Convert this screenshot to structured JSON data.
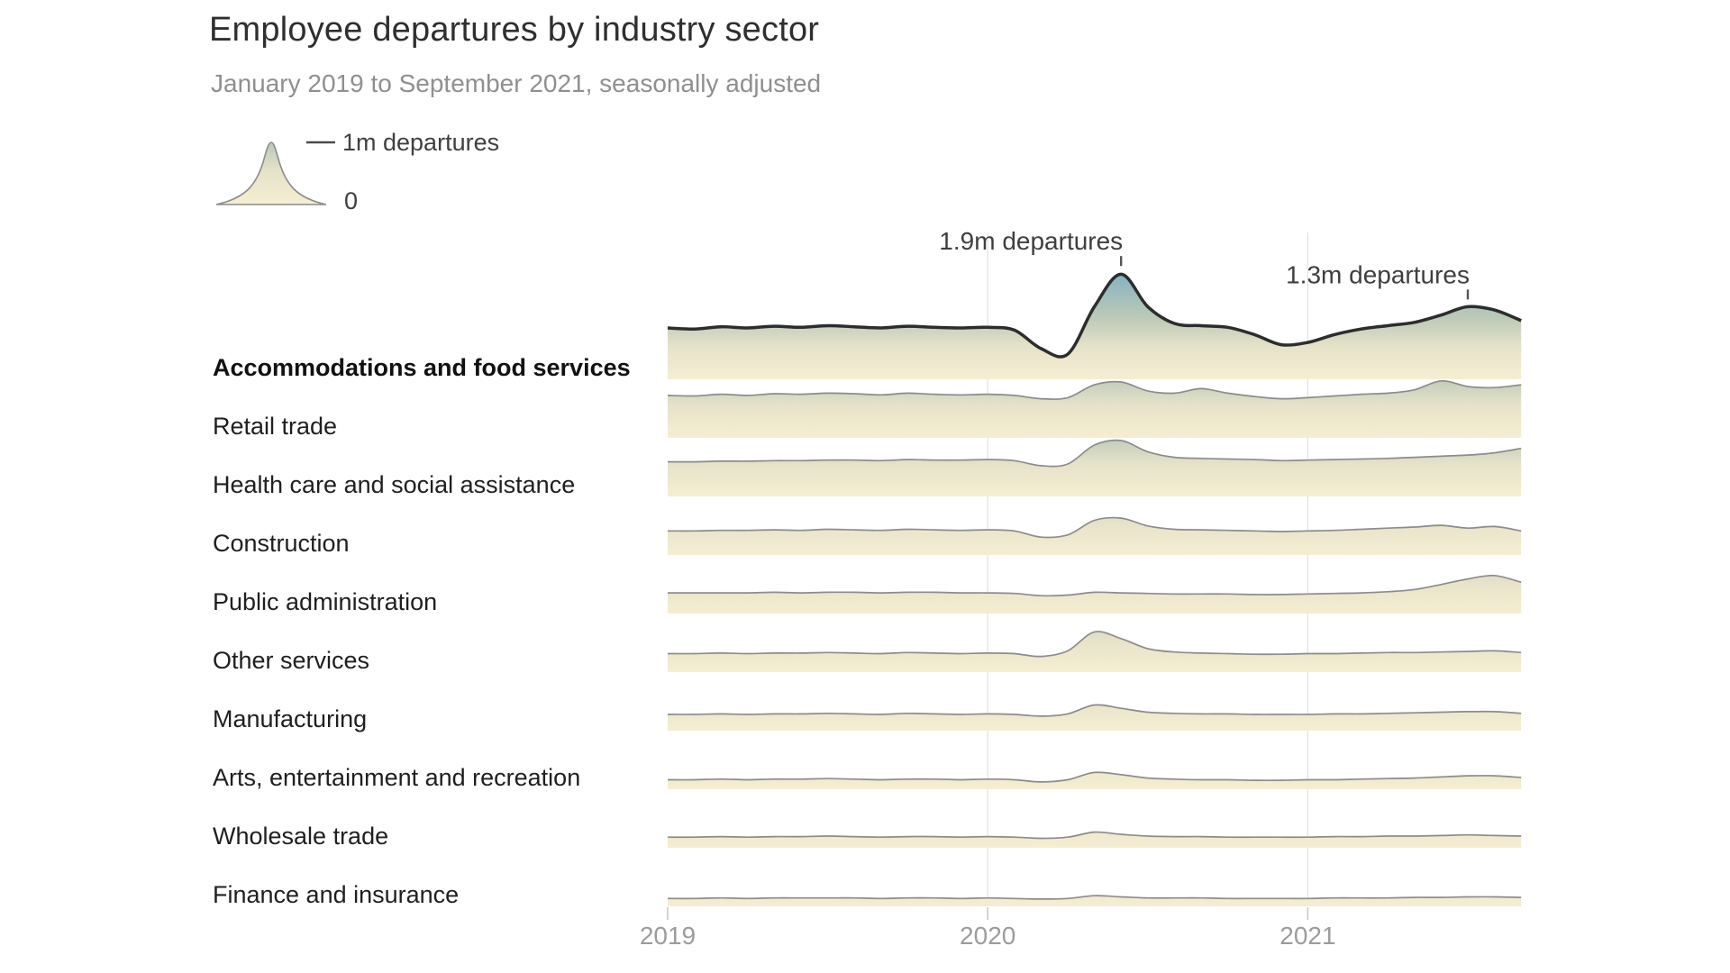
{
  "header": {
    "title": "Employee departures by industry sector",
    "subtitle": "January 2019 to September 2021, seasonally adjusted"
  },
  "legend": {
    "max_label": "1m departures",
    "zero_label": "0"
  },
  "chart_data": {
    "type": "area",
    "variant": "ridgeline",
    "title": "Employee departures by industry sector",
    "subtitle": "January 2019 to September 2021, seasonally adjusted",
    "unit": "millions of departures per month",
    "legend": {
      "max_value": 1.0,
      "max_label": "1m departures",
      "zero_label": "0"
    },
    "x": [
      "2019-01",
      "2019-02",
      "2019-03",
      "2019-04",
      "2019-05",
      "2019-06",
      "2019-07",
      "2019-08",
      "2019-09",
      "2019-10",
      "2019-11",
      "2019-12",
      "2020-01",
      "2020-02",
      "2020-03",
      "2020-04",
      "2020-05",
      "2020-06",
      "2020-07",
      "2020-08",
      "2020-09",
      "2020-10",
      "2020-11",
      "2020-12",
      "2021-01",
      "2021-02",
      "2021-03",
      "2021-04",
      "2021-05",
      "2021-06",
      "2021-07",
      "2021-08",
      "2021-09"
    ],
    "x_ticks": [
      {
        "label": "2019",
        "month_index": 0,
        "gridline": false
      },
      {
        "label": "2020",
        "month_index": 12,
        "gridline": true
      },
      {
        "label": "2021",
        "month_index": 24,
        "gridline": true
      }
    ],
    "series": [
      {
        "name": "Accommodations and food services",
        "bold": true,
        "values": [
          0.92,
          0.9,
          0.94,
          0.92,
          0.95,
          0.93,
          0.96,
          0.94,
          0.92,
          0.95,
          0.93,
          0.92,
          0.93,
          0.88,
          0.55,
          0.45,
          1.3,
          1.88,
          1.3,
          1.0,
          0.96,
          0.93,
          0.8,
          0.62,
          0.66,
          0.8,
          0.9,
          0.96,
          1.02,
          1.15,
          1.3,
          1.24,
          1.05
        ]
      },
      {
        "name": "Retail trade",
        "bold": false,
        "values": [
          0.76,
          0.75,
          0.78,
          0.76,
          0.79,
          0.78,
          0.8,
          0.79,
          0.77,
          0.8,
          0.78,
          0.77,
          0.78,
          0.76,
          0.7,
          0.72,
          0.95,
          1.0,
          0.84,
          0.8,
          0.88,
          0.8,
          0.74,
          0.7,
          0.72,
          0.75,
          0.78,
          0.8,
          0.86,
          1.02,
          0.92,
          0.9,
          0.95
        ]
      },
      {
        "name": "Health care and social assistance",
        "bold": false,
        "values": [
          0.62,
          0.62,
          0.63,
          0.63,
          0.64,
          0.64,
          0.65,
          0.65,
          0.64,
          0.66,
          0.65,
          0.65,
          0.66,
          0.64,
          0.55,
          0.58,
          0.92,
          1.0,
          0.8,
          0.7,
          0.68,
          0.67,
          0.66,
          0.64,
          0.65,
          0.66,
          0.67,
          0.68,
          0.7,
          0.72,
          0.74,
          0.78,
          0.86
        ]
      },
      {
        "name": "Construction",
        "bold": false,
        "values": [
          0.43,
          0.43,
          0.44,
          0.44,
          0.45,
          0.44,
          0.46,
          0.45,
          0.44,
          0.46,
          0.45,
          0.44,
          0.45,
          0.43,
          0.32,
          0.36,
          0.62,
          0.66,
          0.52,
          0.46,
          0.45,
          0.44,
          0.43,
          0.42,
          0.43,
          0.44,
          0.46,
          0.48,
          0.5,
          0.53,
          0.48,
          0.51,
          0.43
        ]
      },
      {
        "name": "Public administration",
        "bold": false,
        "values": [
          0.37,
          0.37,
          0.37,
          0.37,
          0.38,
          0.37,
          0.38,
          0.38,
          0.37,
          0.38,
          0.38,
          0.37,
          0.37,
          0.36,
          0.32,
          0.33,
          0.38,
          0.37,
          0.36,
          0.35,
          0.35,
          0.35,
          0.34,
          0.34,
          0.35,
          0.36,
          0.37,
          0.39,
          0.43,
          0.52,
          0.62,
          0.68,
          0.56
        ]
      },
      {
        "name": "Other services",
        "bold": false,
        "values": [
          0.33,
          0.33,
          0.34,
          0.33,
          0.34,
          0.34,
          0.35,
          0.34,
          0.33,
          0.35,
          0.34,
          0.33,
          0.34,
          0.33,
          0.28,
          0.38,
          0.72,
          0.6,
          0.42,
          0.36,
          0.34,
          0.33,
          0.32,
          0.32,
          0.33,
          0.33,
          0.34,
          0.35,
          0.35,
          0.36,
          0.37,
          0.38,
          0.35
        ]
      },
      {
        "name": "Manufacturing",
        "bold": false,
        "values": [
          0.29,
          0.29,
          0.3,
          0.29,
          0.3,
          0.3,
          0.31,
          0.3,
          0.29,
          0.31,
          0.3,
          0.29,
          0.3,
          0.29,
          0.26,
          0.3,
          0.46,
          0.4,
          0.33,
          0.31,
          0.3,
          0.3,
          0.29,
          0.29,
          0.29,
          0.3,
          0.3,
          0.31,
          0.32,
          0.33,
          0.34,
          0.34,
          0.31
        ]
      },
      {
        "name": "Arts, entertainment and recreation",
        "bold": false,
        "values": [
          0.17,
          0.17,
          0.18,
          0.17,
          0.18,
          0.18,
          0.19,
          0.18,
          0.17,
          0.18,
          0.18,
          0.17,
          0.18,
          0.17,
          0.13,
          0.17,
          0.3,
          0.26,
          0.2,
          0.18,
          0.17,
          0.17,
          0.16,
          0.16,
          0.17,
          0.17,
          0.18,
          0.19,
          0.2,
          0.22,
          0.24,
          0.24,
          0.21
        ]
      },
      {
        "name": "Wholesale trade",
        "bold": false,
        "values": [
          0.19,
          0.19,
          0.2,
          0.19,
          0.2,
          0.2,
          0.21,
          0.2,
          0.19,
          0.2,
          0.2,
          0.19,
          0.2,
          0.19,
          0.17,
          0.19,
          0.28,
          0.24,
          0.21,
          0.2,
          0.2,
          0.19,
          0.19,
          0.19,
          0.19,
          0.2,
          0.2,
          0.21,
          0.21,
          0.22,
          0.23,
          0.22,
          0.21
        ]
      },
      {
        "name": "Finance and insurance",
        "bold": false,
        "values": [
          0.14,
          0.14,
          0.15,
          0.14,
          0.15,
          0.15,
          0.15,
          0.15,
          0.14,
          0.15,
          0.15,
          0.14,
          0.15,
          0.14,
          0.13,
          0.14,
          0.19,
          0.17,
          0.15,
          0.15,
          0.15,
          0.14,
          0.14,
          0.14,
          0.14,
          0.15,
          0.15,
          0.15,
          0.16,
          0.16,
          0.17,
          0.17,
          0.16
        ]
      }
    ],
    "annotations": [
      {
        "label": "1.9m departures",
        "series": "Accommodations and food services",
        "month_index": 17,
        "value": 1.9
      },
      {
        "label": "1.3m departures",
        "series": "Accommodations and food services",
        "month_index": 30,
        "value": 1.3
      }
    ],
    "colors": {
      "gradient_top": "#7aadc0",
      "gradient_upper_mid": "#97b9be",
      "gradient_mid": "#bccab8",
      "gradient_low": "#e6e2c9",
      "gradient_base": "#f5eed2",
      "row_stroke": "#8c8c8c",
      "highlight_stroke": "#2d2d2d",
      "gridline": "#e2e2e2",
      "axis_tick": "#c9c9c9",
      "axis_label": "#9c9c9c",
      "annotation_text": "#3f3f3f",
      "annotation_tick": "#555555",
      "legend_dash": "#4a4a4a",
      "title": "#2f2f2f",
      "subtitle": "#8f8f8f",
      "row_label": "#1f1f1f"
    }
  }
}
